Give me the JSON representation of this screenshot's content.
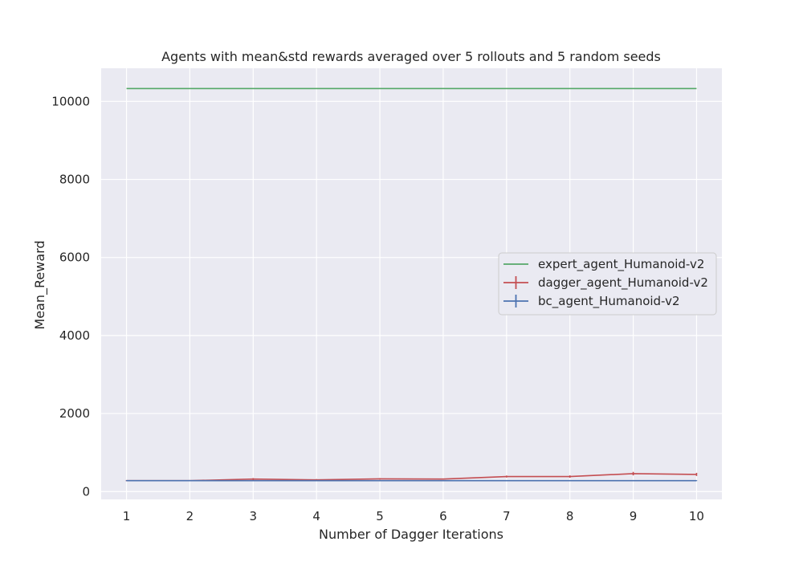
{
  "chart_data": {
    "type": "line",
    "title": "Agents with mean&std rewards averaged over 5 rollouts and 5 random seeds",
    "xlabel": "Number of Dagger Iterations",
    "ylabel": "Mean_Reward",
    "x": [
      1,
      2,
      3,
      4,
      5,
      6,
      7,
      8,
      9,
      10
    ],
    "x_ticks": [
      "1",
      "2",
      "3",
      "4",
      "5",
      "6",
      "7",
      "8",
      "9",
      "10"
    ],
    "y_ticks": [
      "0",
      "2000",
      "4000",
      "6000",
      "8000",
      "10000"
    ],
    "xlim": [
      0.6,
      10.4
    ],
    "ylim": [
      -200,
      10850
    ],
    "grid": true,
    "background": "#eaeaf2",
    "legend_position": "center-right",
    "series": [
      {
        "name": "expert_agent_Humanoid-v2",
        "color": "#55a868",
        "values": [
          10330,
          10330,
          10330,
          10330,
          10330,
          10330,
          10330,
          10330,
          10330,
          10330
        ],
        "errors": null
      },
      {
        "name": "dagger_agent_Humanoid-v2",
        "color": "#c44e52",
        "values": [
          280,
          280,
          320,
          300,
          325,
          320,
          385,
          385,
          460,
          440
        ],
        "errors": [
          15,
          15,
          25,
          20,
          20,
          15,
          25,
          30,
          45,
          40
        ]
      },
      {
        "name": "bc_agent_Humanoid-v2",
        "color": "#4c72b0",
        "values": [
          280,
          280,
          280,
          280,
          280,
          280,
          280,
          280,
          280,
          280
        ],
        "errors": [
          10,
          10,
          10,
          10,
          10,
          10,
          10,
          10,
          10,
          10
        ]
      }
    ]
  }
}
